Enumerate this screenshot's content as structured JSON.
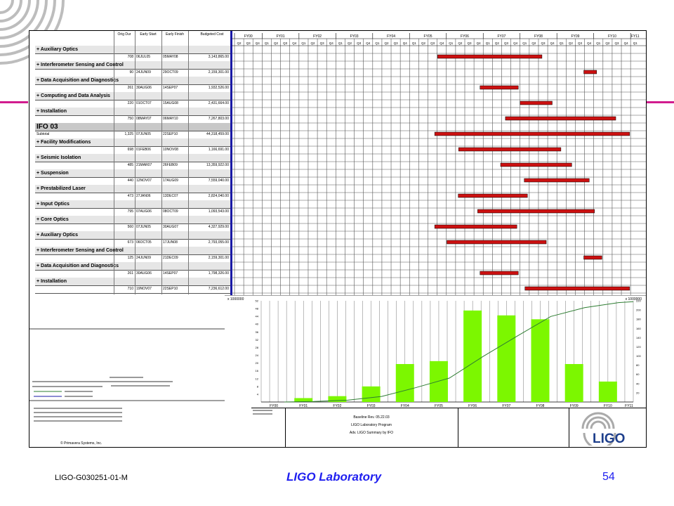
{
  "footer": {
    "doc_id": "LIGO-G030251-01-M",
    "center": "LIGO Laboratory",
    "page": "54"
  },
  "colors": {
    "accent_magenta": "#d11c8e",
    "footer_blue": "#1f1ff0",
    "bar_red": "#cc1111",
    "hist_green": "#7cf700",
    "curve_green": "#2e7d32",
    "separator_blue": "#1a1aa6"
  },
  "table": {
    "headers": [
      "Orig Dur",
      "Early Start",
      "Early Finish",
      "Budgeted Cost"
    ],
    "rows": [
      {
        "kind": "group",
        "label": "+ Auxiliary Optics"
      },
      {
        "kind": "data",
        "dur": "708",
        "start": "06JUL05",
        "finish": "05MAY08",
        "cost": "3,143,865.00"
      },
      {
        "kind": "group",
        "label": "+ Interferometer Sensing and Control"
      },
      {
        "kind": "data",
        "dur": "90",
        "start": "24JUN09",
        "finish": "29OCT09",
        "cost": "2,159,301.00"
      },
      {
        "kind": "group",
        "label": "+ Data Acquisition and Diagnostics"
      },
      {
        "kind": "data",
        "dur": "261",
        "start": "30AUG06",
        "finish": "14SEP07",
        "cost": "1,932,526.00"
      },
      {
        "kind": "group",
        "label": "+ Computing and Data Analysis"
      },
      {
        "kind": "data",
        "dur": "220",
        "start": "01OCT07",
        "finish": "15AUG08",
        "cost": "2,431,664.00"
      },
      {
        "kind": "group",
        "label": "+ Installation"
      },
      {
        "kind": "data",
        "dur": "750",
        "start": "08MAY07",
        "finish": "06MAY10",
        "cost": "7,267,803.00"
      },
      {
        "kind": "section",
        "label": "IFO 03"
      },
      {
        "kind": "subtotal",
        "label": "Subtotal",
        "dur": "1,325",
        "start": "07JUN05",
        "finish": "22SEP10",
        "cost": "44,318,459.00"
      },
      {
        "kind": "group",
        "label": "+ Facility Modifications"
      },
      {
        "kind": "data",
        "dur": "698",
        "start": "01FEB06",
        "finish": "10NOV08",
        "cost": "1,166,691.00"
      },
      {
        "kind": "group",
        "label": "+ Seismic Isolation"
      },
      {
        "kind": "data",
        "dur": "485",
        "start": "21MAR07",
        "finish": "26FEB09",
        "cost": "13,359,922.00"
      },
      {
        "kind": "group",
        "label": "+ Suspension"
      },
      {
        "kind": "data",
        "dur": "440",
        "start": "12NOV07",
        "finish": "17AUG09",
        "cost": "7,559,040.00"
      },
      {
        "kind": "group",
        "label": "+ Prestabilized Laser"
      },
      {
        "kind": "data",
        "dur": "473",
        "start": "27JAN06",
        "finish": "13DEC07",
        "cost": "2,824,040.00"
      },
      {
        "kind": "group",
        "label": "+ Input Optics"
      },
      {
        "kind": "data",
        "dur": "795",
        "start": "07AUG06",
        "finish": "08OCT09",
        "cost": "1,093,543.00"
      },
      {
        "kind": "group",
        "label": "+ Core Optics"
      },
      {
        "kind": "data",
        "dur": "560",
        "start": "07JUN05",
        "finish": "30AUG07",
        "cost": "4,327,929.00"
      },
      {
        "kind": "group",
        "label": "+ Auxiliary Optics"
      },
      {
        "kind": "data",
        "dur": "673",
        "start": "06OCT05",
        "finish": "17JUN08",
        "cost": "2,793,055.00"
      },
      {
        "kind": "group",
        "label": "+ Interferometer Sensing and Control"
      },
      {
        "kind": "data",
        "dur": "125",
        "start": "24JUN09",
        "finish": "21DEC09",
        "cost": "2,159,301.00"
      },
      {
        "kind": "group",
        "label": "+ Data Acquisition and Diagnostics"
      },
      {
        "kind": "data",
        "dur": "261",
        "start": "30AUG06",
        "finish": "14SEP07",
        "cost": "1,798,326.00"
      },
      {
        "kind": "group",
        "label": "+ Installation"
      },
      {
        "kind": "data",
        "dur": "710",
        "start": "19NOV07",
        "finish": "22SEP10",
        "cost": "7,236,612.00"
      }
    ]
  },
  "chart_data": [
    {
      "type": "gantt",
      "fiscal_years": [
        "FY00",
        "FY01",
        "FY02",
        "FY03",
        "FY04",
        "FY05",
        "FY06",
        "FY07",
        "FY08",
        "FY09",
        "FY10",
        "FY11"
      ],
      "quarters": [
        "Q2",
        "Q3",
        "Q4",
        "Q1",
        "Q2",
        "Q3",
        "Q4",
        "Q1",
        "Q2",
        "Q3",
        "Q4",
        "Q1",
        "Q2",
        "Q3",
        "Q4",
        "Q1",
        "Q2",
        "Q3",
        "Q4",
        "Q1",
        "Q2",
        "Q3",
        "Q4",
        "Q1",
        "Q2",
        "Q3",
        "Q4",
        "Q1",
        "Q2",
        "Q3",
        "Q4",
        "Q1",
        "Q2",
        "Q3",
        "Q4",
        "Q1",
        "Q2",
        "Q3",
        "Q4",
        "Q1",
        "Q2",
        "Q3",
        "Q4",
        "Q1"
      ],
      "bars": [
        {
          "row": 1,
          "start": "06JUL05",
          "finish": "05MAY08"
        },
        {
          "row": 3,
          "start": "24JUN09",
          "finish": "29OCT09"
        },
        {
          "row": 5,
          "start": "30AUG06",
          "finish": "14SEP07"
        },
        {
          "row": 7,
          "start": "01OCT07",
          "finish": "15AUG08"
        },
        {
          "row": 9,
          "start": "08MAY07",
          "finish": "06MAY10"
        },
        {
          "row": 11,
          "start": "07JUN05",
          "finish": "22SEP10"
        },
        {
          "row": 13,
          "start": "01FEB06",
          "finish": "10NOV08"
        },
        {
          "row": 15,
          "start": "21MAR07",
          "finish": "26FEB09"
        },
        {
          "row": 17,
          "start": "12NOV07",
          "finish": "17AUG09"
        },
        {
          "row": 19,
          "start": "27JAN06",
          "finish": "13DEC07"
        },
        {
          "row": 21,
          "start": "07AUG06",
          "finish": "08OCT09"
        },
        {
          "row": 23,
          "start": "07JUN05",
          "finish": "30AUG07"
        },
        {
          "row": 25,
          "start": "06OCT05",
          "finish": "17JUN08"
        },
        {
          "row": 27,
          "start": "24JUN09",
          "finish": "21DEC09"
        },
        {
          "row": 29,
          "start": "30AUG06",
          "finish": "14SEP07"
        },
        {
          "row": 31,
          "start": "19NOV07",
          "finish": "22SEP10"
        }
      ]
    },
    {
      "type": "bar",
      "categories": [
        "FY00",
        "FY01",
        "FY02",
        "FY03",
        "FY04",
        "FY05",
        "FY06",
        "FY07",
        "FY08",
        "FY09",
        "FY10",
        "FY11"
      ],
      "values": [
        0,
        2,
        3,
        8,
        19.5,
        21,
        47,
        44.5,
        42.5,
        19.5,
        10.5,
        0
      ],
      "scale_label_left": "x 1000000",
      "scale_label_right": "x 1000000",
      "yticks_left": [
        "4",
        "8",
        "12",
        "16",
        "20",
        "24",
        "28",
        "32",
        "36",
        "40",
        "44",
        "48",
        "52"
      ],
      "yticks_right": [
        "20",
        "40",
        "60",
        "80",
        "100",
        "120",
        "140",
        "160",
        "180",
        "200",
        "220"
      ],
      "ylim": [
        0,
        52
      ]
    },
    {
      "type": "line",
      "x": [
        "FY00",
        "FY01",
        "FY02",
        "FY03",
        "FY04",
        "FY05",
        "FY06",
        "FY07",
        "FY08",
        "FY09",
        "FY10",
        "FY11"
      ],
      "values": [
        0,
        1,
        4,
        12,
        31,
        52,
        99,
        143,
        186,
        205,
        216,
        218
      ],
      "ylim": [
        0,
        220
      ]
    }
  ],
  "title_block": {
    "lines": [
      "Baseline Rev. 05.22.03",
      "LIGO Laboratory Program",
      "Adv. LIGO Summary by IFO"
    ],
    "credit": "© Primavera Systems, Inc.",
    "logo": "LIGO"
  }
}
